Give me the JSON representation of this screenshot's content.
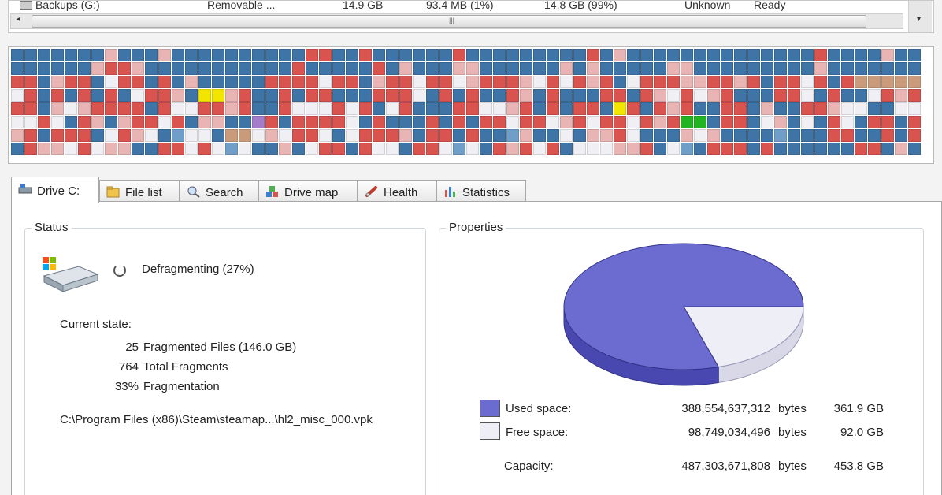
{
  "drive_list": {
    "row": {
      "name": "Backups (G:)",
      "type": "Removable ...",
      "size": "14.9 GB",
      "used": "93.4 MB (1%)",
      "free": "14.8 GB (99%)",
      "fs": "Unknown",
      "status": "Ready"
    },
    "scroll_grip": "|||"
  },
  "tabs": [
    {
      "label": "Drive C:",
      "icon": "drive-icon"
    },
    {
      "label": "File list",
      "icon": "folder-icon"
    },
    {
      "label": "Search",
      "icon": "magnifier-icon"
    },
    {
      "label": "Drive map",
      "icon": "blocks-icon"
    },
    {
      "label": "Health",
      "icon": "stethoscope-icon"
    },
    {
      "label": "Statistics",
      "icon": "bar-chart-icon"
    }
  ],
  "status": {
    "title": "Status",
    "state_text": "Defragmenting (27%)",
    "progress_percent": 27,
    "current_state_label": "Current state:",
    "stats": [
      {
        "value": "25",
        "label": "Fragmented Files (146.0 GB)"
      },
      {
        "value": "764",
        "label": "Total Fragments"
      },
      {
        "value": "33%",
        "label": "Fragmentation"
      }
    ],
    "current_file": "C:\\Program Files (x86)\\Steam\\steamap...\\hl2_misc_000.vpk"
  },
  "properties": {
    "title": "Properties",
    "used": {
      "label": "Used space:",
      "bytes": "388,554,637,312",
      "unit": "bytes",
      "size": "361.9 GB",
      "color": "#6b6bd0"
    },
    "free": {
      "label": "Free space:",
      "bytes": "98,749,034,496",
      "unit": "bytes",
      "size": "92.0 GB",
      "color": "#eeeef6"
    },
    "capacity": {
      "label": "Capacity:",
      "bytes": "487,303,671,808",
      "unit": "bytes",
      "size": "453.8 GB"
    },
    "used_fraction": 0.797
  },
  "colors": {
    "used_block": "#3f74a6",
    "fragmented_block": "#d9534f",
    "free_block": "#f0f0f4",
    "pie_used": "#6b6bd0",
    "pie_free": "#eeeef6"
  }
}
